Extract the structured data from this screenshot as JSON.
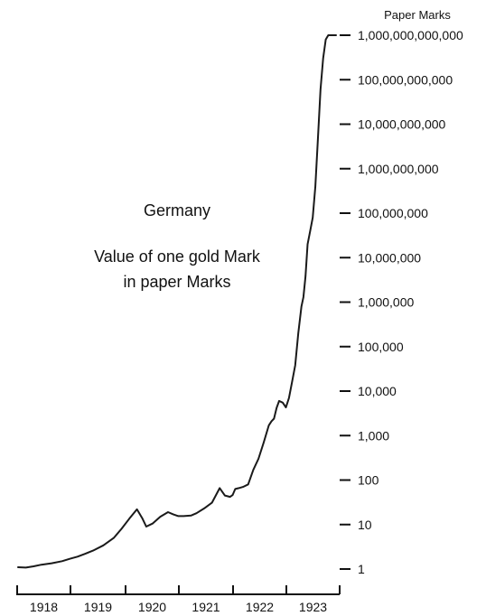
{
  "chart_data": {
    "type": "line",
    "title": "Germany",
    "subtitle": "Value of one gold Mark in paper Marks",
    "subtitle_lines": [
      "Value of one gold Mark",
      "in paper Marks"
    ],
    "ylabel": "Paper Marks",
    "xlabel": "",
    "yscale": "log",
    "ylim": [
      1,
      1000000000000
    ],
    "xlim": [
      1917.6,
      1923.75
    ],
    "y_ticks": [
      {
        "value": 1,
        "label": "1"
      },
      {
        "value": 10,
        "label": "10"
      },
      {
        "value": 100,
        "label": "100"
      },
      {
        "value": 1000,
        "label": "1,000"
      },
      {
        "value": 10000,
        "label": "10,000"
      },
      {
        "value": 100000,
        "label": "100,000"
      },
      {
        "value": 1000000,
        "label": "1,000,000"
      },
      {
        "value": 10000000,
        "label": "10,000,000"
      },
      {
        "value": 100000000,
        "label": "100,000,000"
      },
      {
        "value": 1000000000,
        "label": "1,000,000,000"
      },
      {
        "value": 10000000000,
        "label": "10,000,000,000"
      },
      {
        "value": 100000000000,
        "label": "100,000,000,000"
      },
      {
        "value": 1000000000000,
        "label": "1,000,000,000,000"
      }
    ],
    "x_ticks": [
      "1918",
      "1919",
      "1920",
      "1921",
      "1922",
      "1923"
    ],
    "grid": false,
    "legend": "none",
    "line_color": "#1a1a1a",
    "series": [
      {
        "x": [
          1917.6,
          1917.75,
          1917.9,
          1918.05,
          1918.25,
          1918.45,
          1918.6,
          1918.75,
          1918.9,
          1919.05,
          1919.25,
          1919.45,
          1919.6,
          1919.75,
          1919.9,
          1920.0,
          1920.08,
          1920.2,
          1920.35,
          1920.5,
          1920.6,
          1920.7,
          1920.8,
          1920.95,
          1921.05,
          1921.2,
          1921.35,
          1921.5,
          1921.6,
          1921.7,
          1921.75,
          1921.8,
          1921.87,
          1921.95,
          1922.05,
          1922.15,
          1922.25,
          1922.35,
          1922.45,
          1922.5,
          1922.55,
          1922.6,
          1922.65,
          1922.72,
          1922.78,
          1922.84,
          1922.9,
          1922.96,
          1923.02,
          1923.08,
          1923.12,
          1923.16,
          1923.2,
          1923.25,
          1923.3,
          1923.35,
          1923.4,
          1923.45,
          1923.5,
          1923.55,
          1923.6,
          1923.63,
          1923.66,
          1923.7,
          1923.75
        ],
        "y": [
          1.1,
          1.08,
          1.15,
          1.25,
          1.35,
          1.5,
          1.7,
          1.9,
          2.2,
          2.6,
          3.4,
          5.0,
          8.0,
          13.5,
          22.0,
          14.0,
          9.0,
          10.5,
          15.0,
          19.0,
          17.0,
          15.5,
          15.5,
          16.0,
          18.0,
          23.0,
          31.0,
          66.0,
          45.0,
          42.0,
          46.0,
          63.0,
          66.0,
          70.0,
          80.0,
          170.0,
          300.0,
          700.0,
          1700.0,
          2100.0,
          2400.0,
          4200.0,
          6000.0,
          5500.0,
          4300.0,
          7000.0,
          16000.0,
          38000.0,
          200000.0,
          800000.0,
          1300000.0,
          3800000.0,
          20000000.0,
          40000000.0,
          80000000.0,
          400000000.0,
          5000000000.0,
          60000000000.0,
          300000000000.0,
          800000000000.0,
          1000000000000.0,
          1000000000000.0,
          1000000000000.0,
          1000000000000.0,
          1000000000000.0
        ]
      }
    ]
  }
}
